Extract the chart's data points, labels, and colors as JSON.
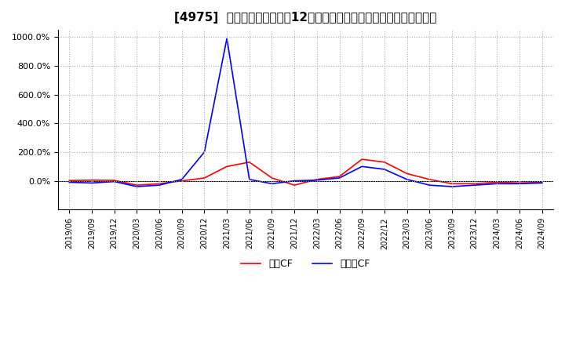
{
  "title": "[4975]  キャッシュフローの12か月移動合計の対前年同期増減率の推移",
  "legend_labels": [
    "営業CF",
    "フリーCF"
  ],
  "line_colors": [
    "#ff0000",
    "#0000ff"
  ],
  "ylim": [
    -200,
    1050
  ],
  "yticks": [
    0,
    200,
    400,
    600,
    800,
    1000
  ],
  "ytick_labels": [
    "0.0%",
    "200.0%",
    "400.0%",
    "600.0%",
    "800.0%",
    "1000.0%"
  ],
  "background_color": "#ffffff",
  "grid_color": "#aaaaaa",
  "dates": [
    "2019/06",
    "2019/09",
    "2019/12",
    "2020/03",
    "2020/06",
    "2020/09",
    "2020/12",
    "2021/03",
    "2021/06",
    "2021/09",
    "2021/12",
    "2022/03",
    "2022/06",
    "2022/09",
    "2022/12",
    "2023/03",
    "2023/06",
    "2023/09",
    "2023/12",
    "2024/03",
    "2024/06",
    "2024/09"
  ],
  "operating_cf": [
    2,
    5,
    3,
    -30,
    -20,
    0,
    20,
    100,
    130,
    20,
    -30,
    10,
    30,
    150,
    130,
    50,
    10,
    -20,
    -20,
    -10,
    -15,
    -10
  ],
  "free_cf": [
    -10,
    -15,
    -5,
    -40,
    -30,
    10,
    200,
    990,
    10,
    -20,
    0,
    5,
    20,
    100,
    80,
    10,
    -30,
    -40,
    -30,
    -20,
    -20,
    -15
  ]
}
